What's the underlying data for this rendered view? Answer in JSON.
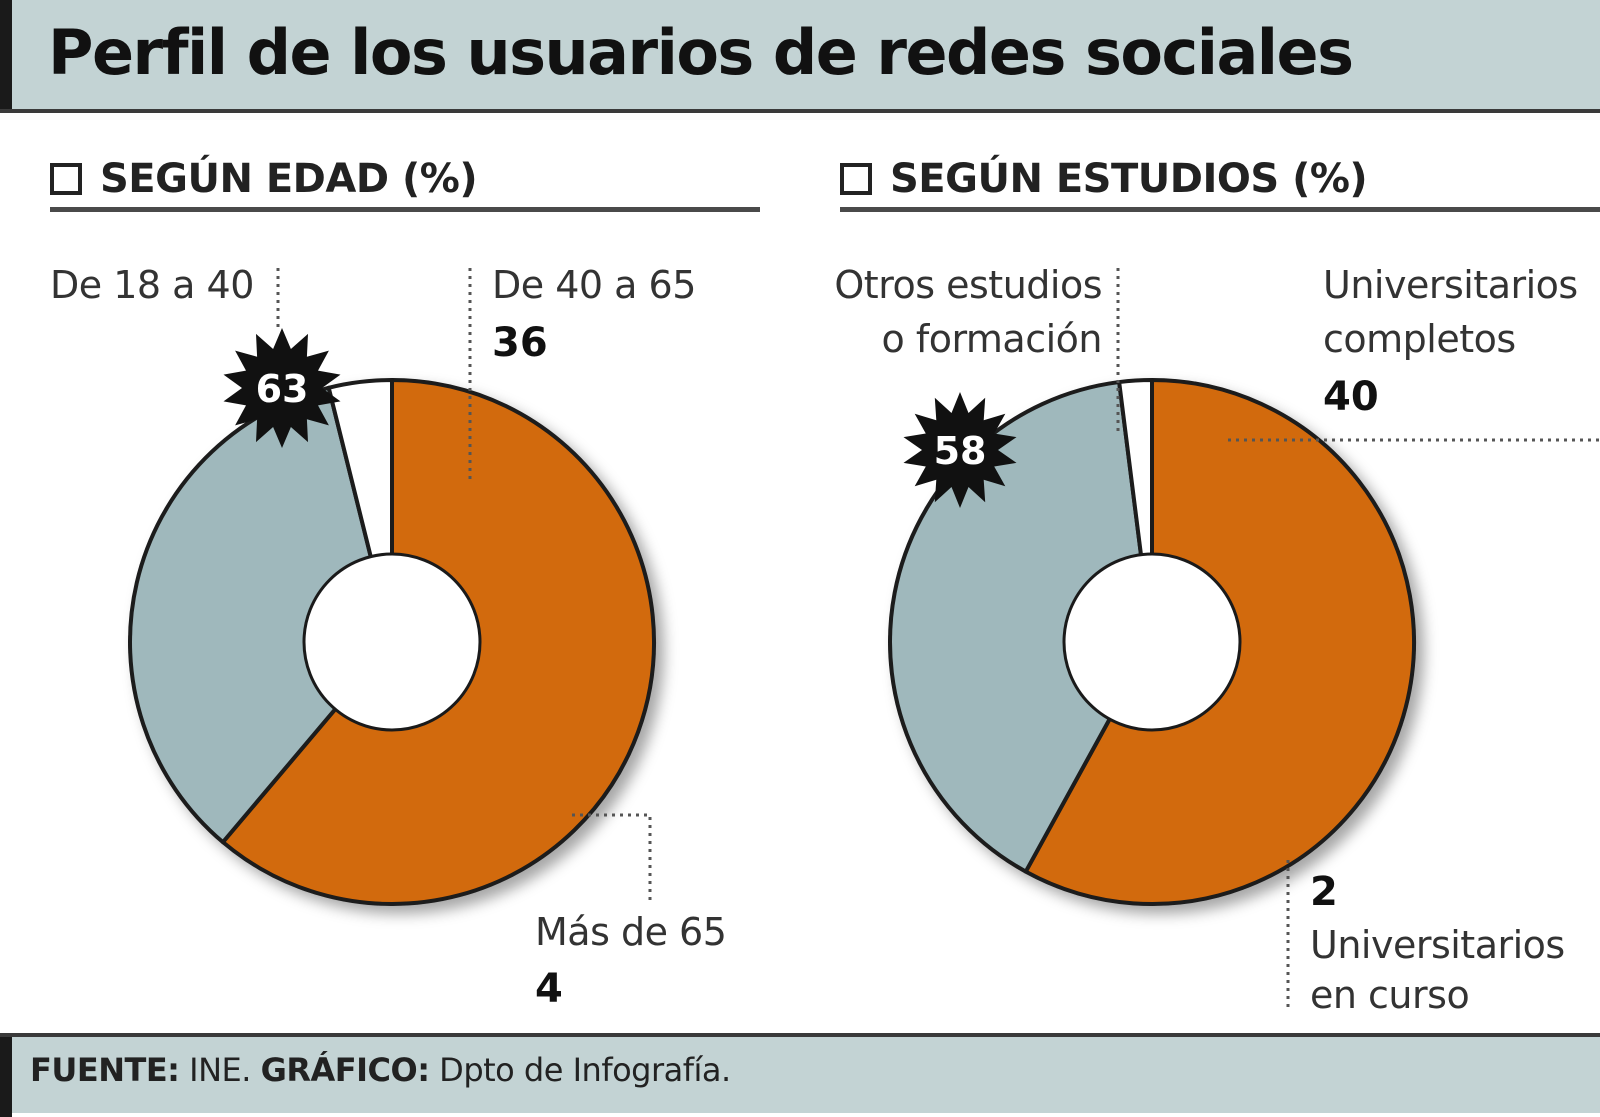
{
  "title": "Perfil de los usuarios de redes sociales",
  "colors": {
    "orange": "#d26a0c",
    "grayblue": "#9fb8bc",
    "white_slice": "#ffffff",
    "outline": "#1a1a1a",
    "band": "#c3d3d4"
  },
  "chart_data": [
    {
      "type": "pie",
      "title": "SEGÚN EDAD (%)",
      "categories": [
        "De 18 a 40",
        "De 40 a 65",
        "Más de 65"
      ],
      "values": [
        63,
        36,
        4
      ],
      "value_labels": [
        "63",
        "36",
        "4"
      ],
      "series_colors": [
        "orange",
        "grayblue",
        "white_slice"
      ]
    },
    {
      "type": "pie",
      "title": "SEGÚN ESTUDIOS (%)",
      "categories": [
        "Otros estudios o formación",
        "Universitarios completos",
        "Universitarios en curso"
      ],
      "category_lines": [
        [
          "Otros estudios",
          "o formación"
        ],
        [
          "Universitarios",
          "completos"
        ],
        [
          "Universitarios",
          "en curso"
        ]
      ],
      "values": [
        58,
        40,
        2
      ],
      "value_labels": [
        "58",
        "40",
        "2"
      ],
      "series_colors": [
        "orange",
        "grayblue",
        "white_slice"
      ]
    }
  ],
  "footer": {
    "source_label": "FUENTE:",
    "source_value": "INE.",
    "graphic_label": "GRÁFICO:",
    "graphic_value": "Dpto de Infografía."
  }
}
